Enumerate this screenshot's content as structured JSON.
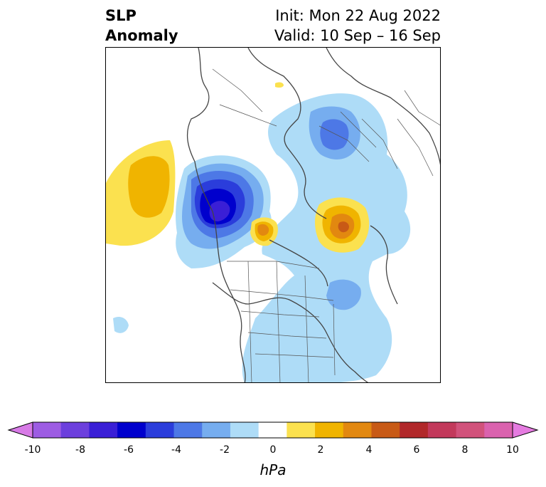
{
  "header": {
    "title_line1": "SLP",
    "title_line2": "Anomaly",
    "init_text": "Init: Mon 22 Aug 2022",
    "valid_text": "Valid: 10 Sep – 16 Sep"
  },
  "colorbar": {
    "unit": "hPa",
    "tick_labels": [
      "-10",
      "-8",
      "-6",
      "-4",
      "-2",
      "0",
      "2",
      "4",
      "6",
      "8",
      "10"
    ],
    "colors": [
      "#d77ae6",
      "#9d5ce3",
      "#6c3fdd",
      "#3a1fd6",
      "#0000cd",
      "#2b3ddb",
      "#4d78e6",
      "#76adef",
      "#aedcf7",
      "#ffffff",
      "#fbe14f",
      "#f0b400",
      "#e28810",
      "#c85a16",
      "#b1282a",
      "#c2395b",
      "#d1527b",
      "#da62ae",
      "#e57be0"
    ]
  },
  "map": {
    "projection": "polar-stereographic",
    "features": [
      "coastlines",
      "country-borders",
      "us-state-borders"
    ]
  }
}
